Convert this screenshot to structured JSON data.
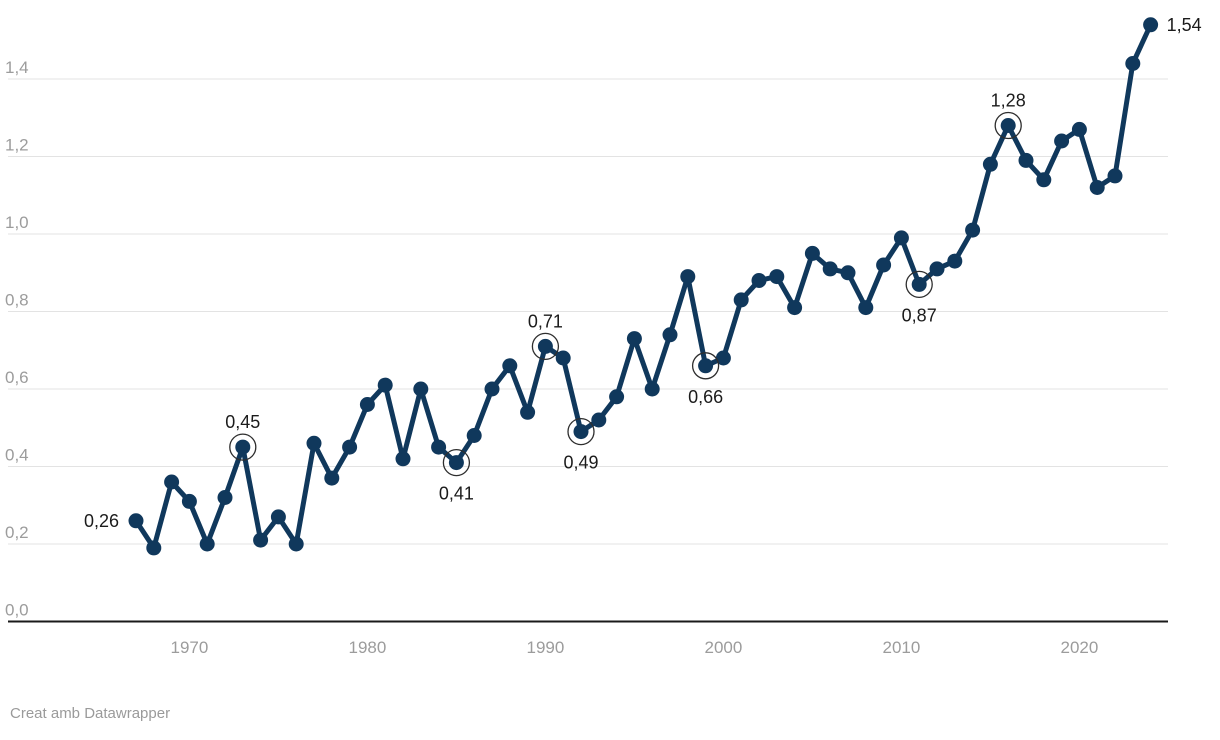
{
  "footer": {
    "credit": "Creat amb Datawrapper"
  },
  "chart_data": {
    "type": "line",
    "title": "",
    "xlabel": "",
    "ylabel": "",
    "legend": "none",
    "grid": "horizontal",
    "ylim": [
      0.0,
      1.6
    ],
    "xlim": [
      1964,
      2025
    ],
    "years": [
      1967,
      1968,
      1969,
      1970,
      1971,
      1972,
      1973,
      1974,
      1975,
      1976,
      1977,
      1978,
      1979,
      1980,
      1981,
      1982,
      1983,
      1984,
      1985,
      1986,
      1987,
      1988,
      1989,
      1990,
      1991,
      1992,
      1993,
      1994,
      1995,
      1996,
      1997,
      1998,
      1999,
      2000,
      2001,
      2002,
      2003,
      2004,
      2005,
      2006,
      2007,
      2008,
      2009,
      2010,
      2011,
      2012,
      2013,
      2014,
      2015,
      2016,
      2017,
      2018,
      2019,
      2020,
      2021,
      2022,
      2023,
      2024
    ],
    "values": [
      0.26,
      0.19,
      0.36,
      0.31,
      0.2,
      0.32,
      0.45,
      0.21,
      0.27,
      0.2,
      0.46,
      0.37,
      0.45,
      0.56,
      0.61,
      0.42,
      0.6,
      0.45,
      0.41,
      0.48,
      0.6,
      0.66,
      0.54,
      0.71,
      0.68,
      0.49,
      0.52,
      0.58,
      0.73,
      0.6,
      0.74,
      0.89,
      0.66,
      0.68,
      0.83,
      0.88,
      0.89,
      0.81,
      0.95,
      0.91,
      0.9,
      0.81,
      0.92,
      0.99,
      0.87,
      0.91,
      0.93,
      1.01,
      1.18,
      1.28,
      1.19,
      1.14,
      1.24,
      1.27,
      1.12,
      1.15,
      1.44,
      1.54
    ],
    "y_ticks": [
      {
        "value": 0.0,
        "label": "0,0"
      },
      {
        "value": 0.2,
        "label": "0,2"
      },
      {
        "value": 0.4,
        "label": "0,4"
      },
      {
        "value": 0.6,
        "label": "0,6"
      },
      {
        "value": 0.8,
        "label": "0,8"
      },
      {
        "value": 1.0,
        "label": "1,0"
      },
      {
        "value": 1.2,
        "label": "1,2"
      },
      {
        "value": 1.4,
        "label": "1,4"
      }
    ],
    "x_ticks": [
      {
        "value": 1970,
        "label": "1970"
      },
      {
        "value": 1980,
        "label": "1980"
      },
      {
        "value": 1990,
        "label": "1990"
      },
      {
        "value": 2000,
        "label": "2000"
      },
      {
        "value": 2010,
        "label": "2010"
      },
      {
        "value": 2020,
        "label": "2020"
      }
    ],
    "annotated_points": [
      {
        "year": 1967,
        "label": "0,26",
        "circled": false,
        "placement": "left"
      },
      {
        "year": 1973,
        "label": "0,45",
        "circled": true,
        "placement": "above"
      },
      {
        "year": 1985,
        "label": "0,41",
        "circled": true,
        "placement": "below"
      },
      {
        "year": 1990,
        "label": "0,71",
        "circled": true,
        "placement": "above"
      },
      {
        "year": 1992,
        "label": "0,49",
        "circled": true,
        "placement": "below"
      },
      {
        "year": 1999,
        "label": "0,66",
        "circled": true,
        "placement": "below"
      },
      {
        "year": 2011,
        "label": "0,87",
        "circled": true,
        "placement": "below"
      },
      {
        "year": 2016,
        "label": "1,28",
        "circled": true,
        "placement": "above"
      },
      {
        "year": 2024,
        "label": "1,54",
        "circled": false,
        "placement": "right"
      }
    ],
    "colors": {
      "line": "#10385c",
      "marker": "#10385c",
      "gridline": "#e3e3e3",
      "axis_line": "#1a1a1a",
      "tick_label": "#9c9c9c",
      "data_label": "#1b1b1b",
      "annotation_ring": "#2e2e2e",
      "background": "#ffffff"
    }
  }
}
